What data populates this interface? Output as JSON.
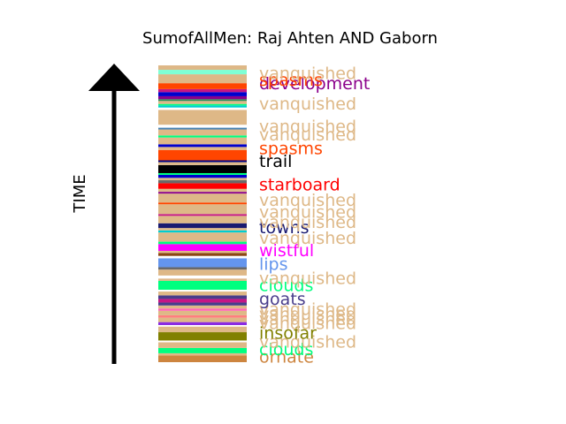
{
  "chart_data": {
    "type": "bar",
    "title": "SumofAllMen: Raj Ahten AND Gaborn",
    "ylabel": "TIME",
    "xlabel": "",
    "ylim": [
      0,
      100
    ],
    "stripes": [
      {
        "y": 0.0,
        "h": 2.3,
        "color": "#cd853f"
      },
      {
        "y": 2.3,
        "h": 0.7,
        "color": "#deb887"
      },
      {
        "y": 3.0,
        "h": 1.8,
        "color": "#00ff7f"
      },
      {
        "y": 4.8,
        "h": 1.9,
        "color": "#deb887"
      },
      {
        "y": 6.7,
        "h": 0.6,
        "color": "#ffffff"
      },
      {
        "y": 7.3,
        "h": 2.8,
        "color": "#808000"
      },
      {
        "y": 10.1,
        "h": 1.9,
        "color": "#deb887"
      },
      {
        "y": 12.0,
        "h": 0.5,
        "color": "#ffffff"
      },
      {
        "y": 12.5,
        "h": 1.0,
        "color": "#8a2be2"
      },
      {
        "y": 13.5,
        "h": 1.5,
        "color": "#deb887"
      },
      {
        "y": 15.0,
        "h": 0.8,
        "color": "#ff7f7f"
      },
      {
        "y": 15.8,
        "h": 1.5,
        "color": "#deb887"
      },
      {
        "y": 17.3,
        "h": 0.8,
        "color": "#ff69b4"
      },
      {
        "y": 18.1,
        "h": 1.0,
        "color": "#deb887"
      },
      {
        "y": 19.1,
        "h": 1.0,
        "color": "#483d8b"
      },
      {
        "y": 20.1,
        "h": 1.2,
        "color": "#c71585"
      },
      {
        "y": 21.3,
        "h": 1.2,
        "color": "#483d8b"
      },
      {
        "y": 22.5,
        "h": 1.3,
        "color": "#deb887"
      },
      {
        "y": 23.8,
        "h": 0.6,
        "color": "#ffffff"
      },
      {
        "y": 24.4,
        "h": 3.0,
        "color": "#00ff7f"
      },
      {
        "y": 27.4,
        "h": 0.8,
        "color": "#deb887"
      },
      {
        "y": 28.2,
        "h": 1.0,
        "color": "#ffffff"
      },
      {
        "y": 29.2,
        "h": 2.0,
        "color": "#deb887"
      },
      {
        "y": 31.2,
        "h": 0.8,
        "color": "#696969"
      },
      {
        "y": 32.0,
        "h": 3.0,
        "color": "#6495ed"
      },
      {
        "y": 35.0,
        "h": 0.8,
        "color": "#ffffff"
      },
      {
        "y": 35.8,
        "h": 1.0,
        "color": "#8b4513"
      },
      {
        "y": 36.8,
        "h": 0.7,
        "color": "#deb887"
      },
      {
        "y": 37.5,
        "h": 2.3,
        "color": "#ff00ff"
      },
      {
        "y": 39.8,
        "h": 0.8,
        "color": "#00ff7f"
      },
      {
        "y": 40.6,
        "h": 3.1,
        "color": "#deb887"
      },
      {
        "y": 43.7,
        "h": 0.7,
        "color": "#00ced1"
      },
      {
        "y": 44.4,
        "h": 0.8,
        "color": "#deb887"
      },
      {
        "y": 45.2,
        "h": 1.6,
        "color": "#191970"
      },
      {
        "y": 46.8,
        "h": 2.5,
        "color": "#deb887"
      },
      {
        "y": 49.3,
        "h": 0.6,
        "color": "#c71585"
      },
      {
        "y": 49.9,
        "h": 3.3,
        "color": "#deb887"
      },
      {
        "y": 53.2,
        "h": 0.6,
        "color": "#ff4500"
      },
      {
        "y": 53.8,
        "h": 3.0,
        "color": "#deb887"
      },
      {
        "y": 56.8,
        "h": 0.6,
        "color": "#8b008b"
      },
      {
        "y": 57.4,
        "h": 1.0,
        "color": "#deb887"
      },
      {
        "y": 58.4,
        "h": 1.9,
        "color": "#ff0000"
      },
      {
        "y": 60.3,
        "h": 1.0,
        "color": "#696969"
      },
      {
        "y": 61.3,
        "h": 0.8,
        "color": "#deb887"
      },
      {
        "y": 62.1,
        "h": 1.0,
        "color": "#0000cd"
      },
      {
        "y": 63.1,
        "h": 0.6,
        "color": "#00ff7f"
      },
      {
        "y": 63.7,
        "h": 2.7,
        "color": "#000000"
      },
      {
        "y": 66.4,
        "h": 1.0,
        "color": "#deb887"
      },
      {
        "y": 67.4,
        "h": 0.6,
        "color": "#000080"
      },
      {
        "y": 68.0,
        "h": 3.5,
        "color": "#ff4500"
      },
      {
        "y": 71.5,
        "h": 1.0,
        "color": "#deb887"
      },
      {
        "y": 72.5,
        "h": 0.9,
        "color": "#0000cd"
      },
      {
        "y": 73.4,
        "h": 2.3,
        "color": "#deb887"
      },
      {
        "y": 75.7,
        "h": 0.7,
        "color": "#00ff7f"
      },
      {
        "y": 76.4,
        "h": 2.0,
        "color": "#deb887"
      },
      {
        "y": 78.4,
        "h": 0.6,
        "color": "#4682b4"
      },
      {
        "y": 79.0,
        "h": 1.0,
        "color": "#ffffff"
      },
      {
        "y": 80.0,
        "h": 5.0,
        "color": "#deb887"
      },
      {
        "y": 85.0,
        "h": 0.8,
        "color": "#ffffff"
      },
      {
        "y": 85.8,
        "h": 0.7,
        "color": "#00ced1"
      },
      {
        "y": 86.5,
        "h": 0.5,
        "color": "#00ff7f"
      },
      {
        "y": 87.0,
        "h": 1.0,
        "color": "#deb887"
      },
      {
        "y": 88.0,
        "h": 0.6,
        "color": "#2e8b57"
      },
      {
        "y": 88.6,
        "h": 1.0,
        "color": "#8b008b"
      },
      {
        "y": 89.6,
        "h": 1.4,
        "color": "#0000cd"
      },
      {
        "y": 91.0,
        "h": 1.0,
        "color": "#c71585"
      },
      {
        "y": 92.0,
        "h": 2.0,
        "color": "#ff4500"
      },
      {
        "y": 94.0,
        "h": 3.0,
        "color": "#deb887"
      },
      {
        "y": 97.0,
        "h": 1.5,
        "color": "#7fffd4"
      },
      {
        "y": 98.5,
        "h": 1.5,
        "color": "#deb887"
      }
    ],
    "labels": [
      {
        "text": "ornate",
        "y": 2.0,
        "color": "#cd853f"
      },
      {
        "text": "clouds",
        "y": 4.5,
        "color": "#00ff7f"
      },
      {
        "text": "vanquished",
        "y": 7.0,
        "color": "#deb887"
      },
      {
        "text": "insofar",
        "y": 10.0,
        "color": "#808000"
      },
      {
        "text": "vanquished",
        "y": 13.2,
        "color": "#deb887"
      },
      {
        "text": "vanquished",
        "y": 14.8,
        "color": "#deb887"
      },
      {
        "text": "vanquished",
        "y": 16.4,
        "color": "#deb887"
      },
      {
        "text": "vanquished",
        "y": 18.0,
        "color": "#deb887"
      },
      {
        "text": "goats",
        "y": 21.4,
        "color": "#483d8b"
      },
      {
        "text": "clouds",
        "y": 26.0,
        "color": "#00ff7f"
      },
      {
        "text": "vanquished",
        "y": 28.4,
        "color": "#deb887"
      },
      {
        "text": "lips",
        "y": 33.2,
        "color": "#6495ed"
      },
      {
        "text": "wistful",
        "y": 37.8,
        "color": "#ff00ff"
      },
      {
        "text": "vanquished",
        "y": 42.0,
        "color": "#deb887"
      },
      {
        "text": "towns",
        "y": 45.5,
        "color": "#191970"
      },
      {
        "text": "vanquished",
        "y": 47.3,
        "color": "#deb887"
      },
      {
        "text": "vanquished",
        "y": 50.8,
        "color": "#deb887"
      },
      {
        "text": "vanquished",
        "y": 54.7,
        "color": "#deb887"
      },
      {
        "text": "starboard",
        "y": 60.0,
        "color": "#ff0000"
      },
      {
        "text": "trail",
        "y": 67.8,
        "color": "#000000"
      },
      {
        "text": "spasms",
        "y": 72.2,
        "color": "#ff4500"
      },
      {
        "text": "vanquished",
        "y": 76.8,
        "color": "#deb887"
      },
      {
        "text": "vanquished",
        "y": 79.6,
        "color": "#deb887"
      },
      {
        "text": "vanquished",
        "y": 87.2,
        "color": "#deb887"
      },
      {
        "text": "development",
        "y": 94.0,
        "color": "#8b008b"
      },
      {
        "text": "spasms",
        "y": 95.2,
        "color": "#ff4500"
      },
      {
        "text": "vanquished",
        "y": 97.5,
        "color": "#deb887"
      }
    ]
  }
}
